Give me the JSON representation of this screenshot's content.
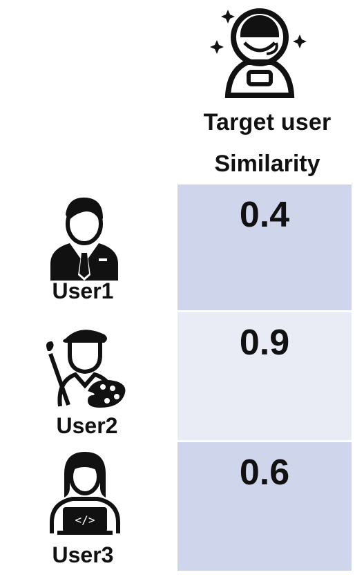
{
  "target": {
    "label": "Target user",
    "icon": "astronaut-icon"
  },
  "similarity_header": "Similarity",
  "users": [
    {
      "label": "User1",
      "icon": "businessman-icon",
      "similarity": "0.4"
    },
    {
      "label": "User2",
      "icon": "painter-icon",
      "similarity": "0.9"
    },
    {
      "label": "User3",
      "icon": "programmer-icon",
      "similarity": "0.6"
    }
  ],
  "colors": {
    "cell_dark": "#cfd5ea",
    "cell_light": "#e9ebf5",
    "ink": "#111111"
  }
}
